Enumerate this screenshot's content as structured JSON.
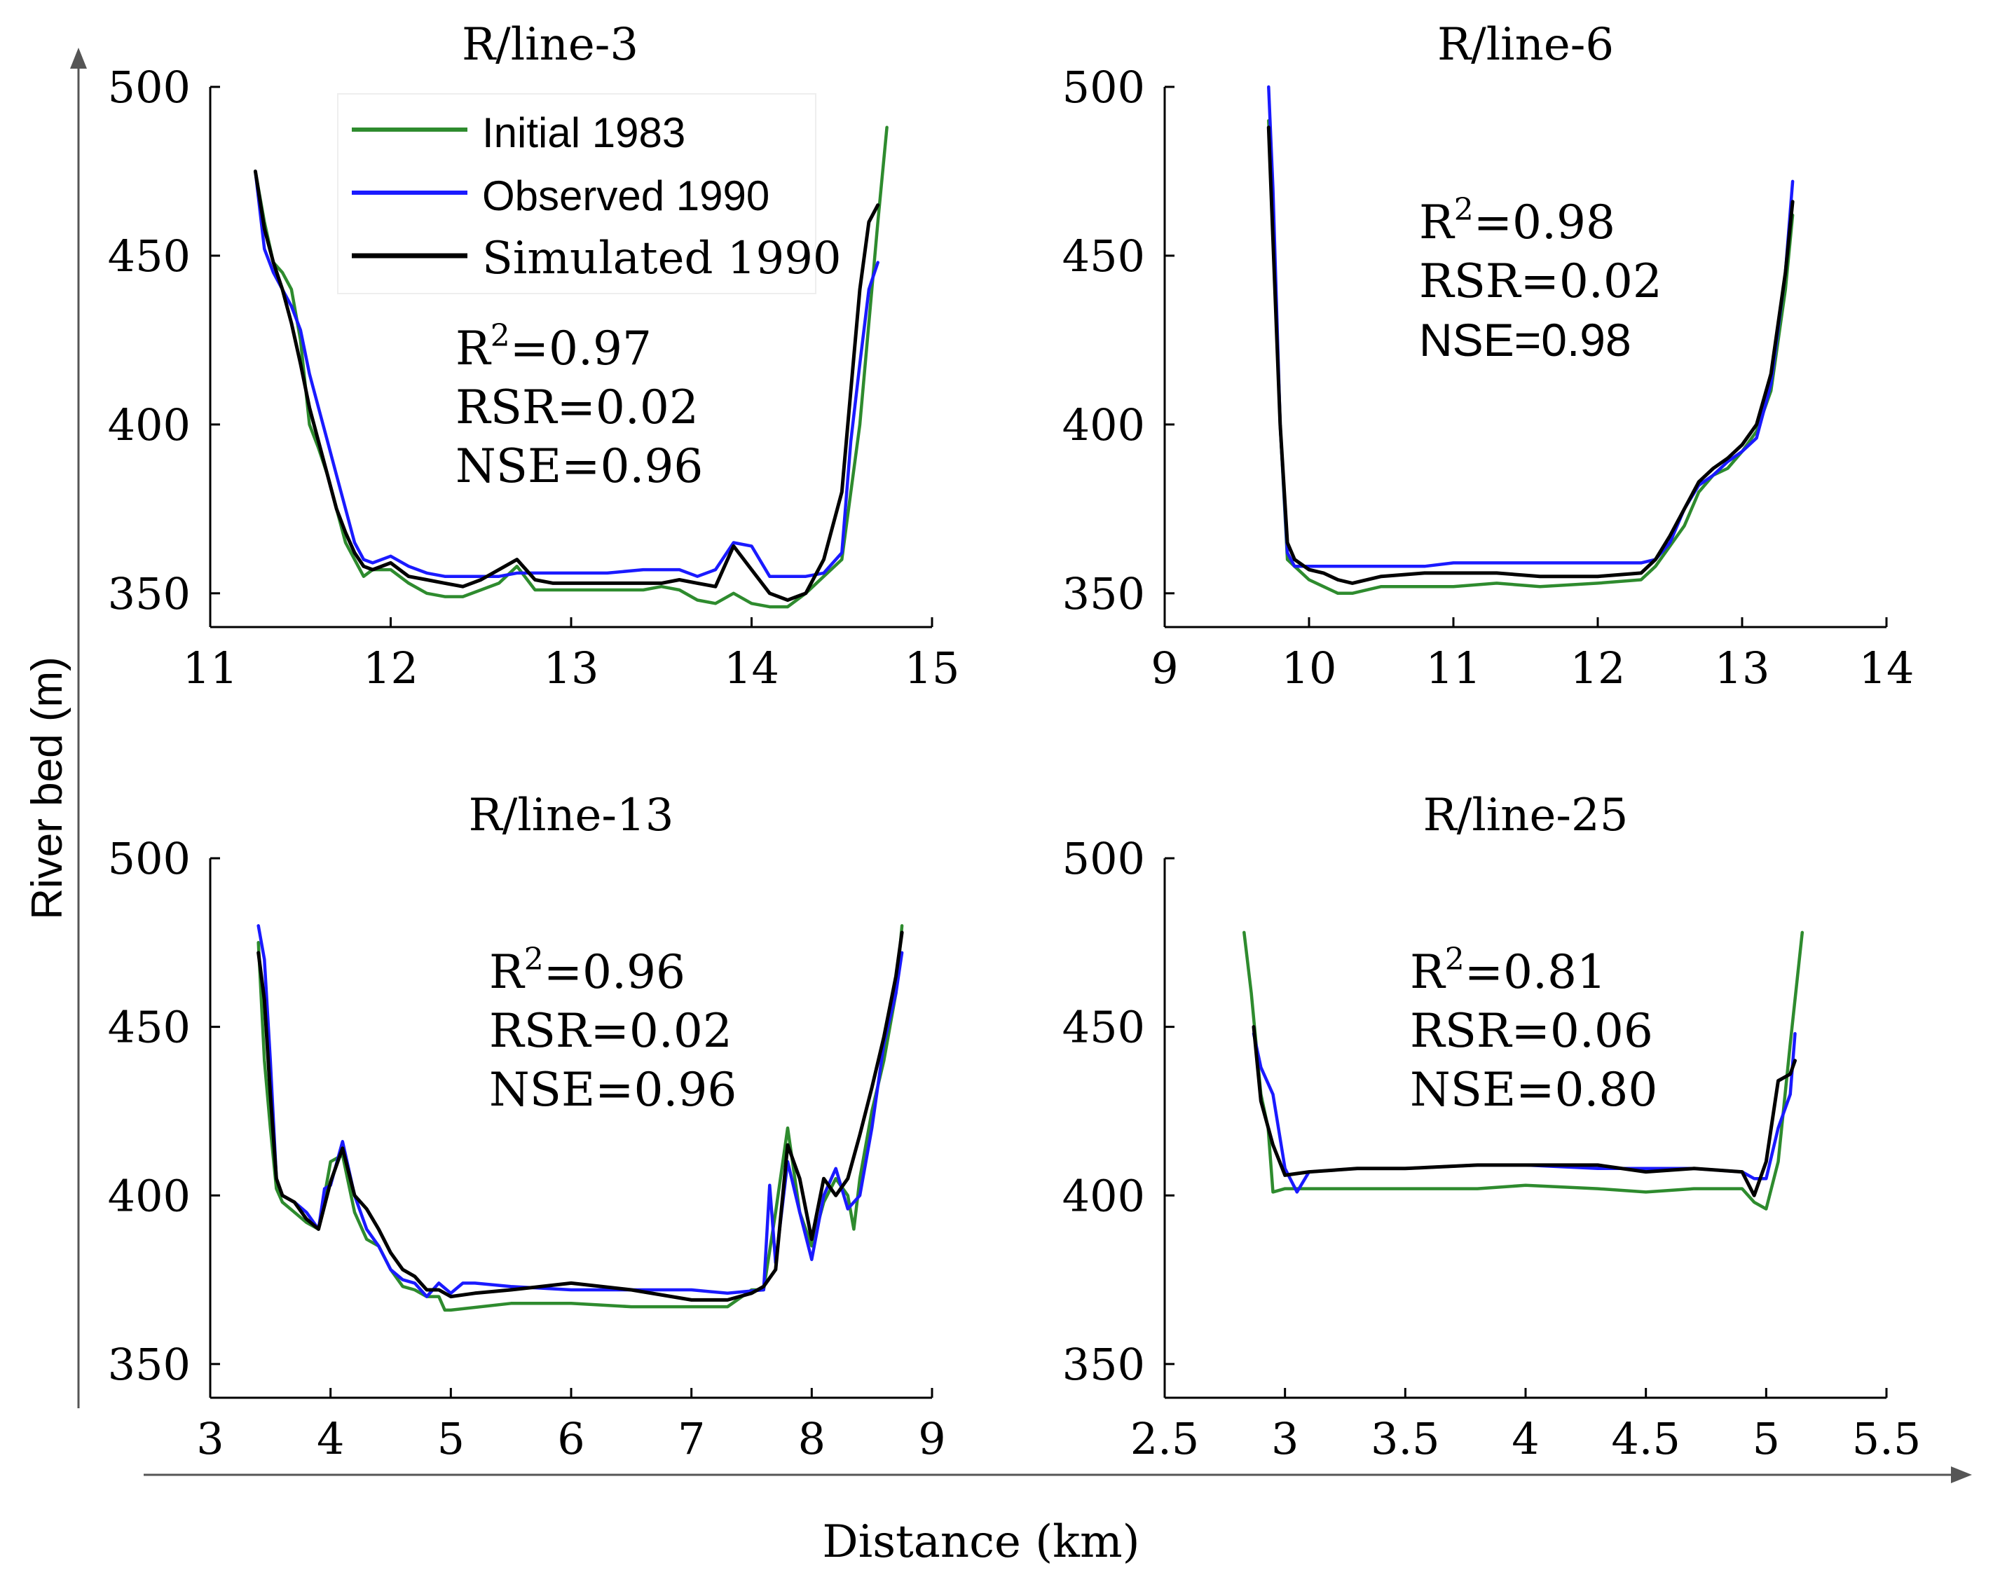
{
  "figure": {
    "ylabel": "River bed (m)",
    "xlabel": "Distance (km)"
  },
  "legend": {
    "placement": "top-left",
    "items": [
      {
        "label": "Initial 1983",
        "color": "#2e8b2e"
      },
      {
        "label": "Observed 1990",
        "color": "#1a1aff"
      },
      {
        "label": "Simulated 1990",
        "color": "#000000"
      }
    ]
  },
  "chart_data": [
    {
      "type": "line",
      "title": "R/line-3",
      "xlim": [
        11,
        15
      ],
      "ylim": [
        340,
        500
      ],
      "xticks": [
        "11",
        "12",
        "13",
        "14",
        "15"
      ],
      "yticks": [
        "350",
        "400",
        "450",
        "500"
      ],
      "xtick_values": [
        11,
        12,
        13,
        14,
        15
      ],
      "ytick_values": [
        350,
        400,
        450,
        500
      ],
      "stats": {
        "r2_prefix": "R",
        "r2_sup": "2",
        "r2_value": "=0.97",
        "rsr": "RSR=0.02",
        "nse": "NSE=0.96"
      },
      "series": [
        {
          "name": "Initial 1983",
          "color": "#2e8b2e",
          "x": [
            11.25,
            11.3,
            11.35,
            11.4,
            11.45,
            11.5,
            11.55,
            11.6,
            11.65,
            11.7,
            11.75,
            11.8,
            11.85,
            11.9,
            12.0,
            12.1,
            12.2,
            12.3,
            12.4,
            12.5,
            12.6,
            12.7,
            12.8,
            12.9,
            13.0,
            13.2,
            13.4,
            13.5,
            13.6,
            13.7,
            13.8,
            13.9,
            14.0,
            14.1,
            14.2,
            14.3,
            14.4,
            14.5,
            14.6,
            14.7,
            14.75
          ],
          "values": [
            475,
            460,
            448,
            445,
            440,
            425,
            400,
            393,
            385,
            375,
            365,
            360,
            355,
            357,
            357,
            353,
            350,
            349,
            349,
            351,
            353,
            358,
            351,
            351,
            351,
            351,
            351,
            352,
            351,
            348,
            347,
            350,
            347,
            346,
            346,
            350,
            355,
            360,
            400,
            460,
            488
          ]
        },
        {
          "name": "Observed 1990",
          "color": "#1a1aff",
          "x": [
            11.25,
            11.3,
            11.35,
            11.4,
            11.45,
            11.5,
            11.55,
            11.6,
            11.65,
            11.7,
            11.75,
            11.8,
            11.85,
            11.9,
            12.0,
            12.1,
            12.2,
            12.3,
            12.4,
            12.5,
            12.6,
            12.7,
            12.8,
            12.9,
            13.0,
            13.2,
            13.4,
            13.5,
            13.6,
            13.7,
            13.8,
            13.9,
            14.0,
            14.1,
            14.2,
            14.3,
            14.4,
            14.5,
            14.55,
            14.6,
            14.65,
            14.7
          ],
          "values": [
            475,
            452,
            445,
            440,
            435,
            428,
            415,
            405,
            395,
            385,
            375,
            365,
            360,
            359,
            361,
            358,
            356,
            355,
            355,
            355,
            355,
            356,
            356,
            356,
            356,
            356,
            357,
            357,
            357,
            355,
            357,
            365,
            364,
            355,
            355,
            355,
            356,
            362,
            395,
            418,
            440,
            448
          ]
        },
        {
          "name": "Simulated 1990",
          "color": "#000000",
          "x": [
            11.25,
            11.3,
            11.35,
            11.4,
            11.45,
            11.5,
            11.55,
            11.6,
            11.65,
            11.7,
            11.75,
            11.8,
            11.85,
            11.9,
            12.0,
            12.1,
            12.2,
            12.3,
            12.4,
            12.5,
            12.6,
            12.7,
            12.8,
            12.9,
            13.0,
            13.2,
            13.4,
            13.5,
            13.6,
            13.7,
            13.8,
            13.9,
            14.0,
            14.1,
            14.2,
            14.3,
            14.4,
            14.5,
            14.55,
            14.6,
            14.65,
            14.7
          ],
          "values": [
            475,
            458,
            448,
            440,
            430,
            418,
            405,
            395,
            385,
            375,
            368,
            362,
            358,
            357,
            359,
            355,
            354,
            353,
            352,
            354,
            357,
            360,
            354,
            353,
            353,
            353,
            353,
            353,
            354,
            353,
            352,
            364,
            357,
            350,
            348,
            350,
            360,
            380,
            410,
            440,
            460,
            465
          ]
        }
      ]
    },
    {
      "type": "line",
      "title": "R/line-6",
      "xlim": [
        9,
        14
      ],
      "ylim": [
        340,
        500
      ],
      "xticks": [
        "9",
        "10",
        "11",
        "12",
        "13",
        "14"
      ],
      "yticks": [
        "350",
        "400",
        "450",
        "500"
      ],
      "xtick_values": [
        9,
        10,
        11,
        12,
        13,
        14
      ],
      "ytick_values": [
        350,
        400,
        450,
        500
      ],
      "stats": {
        "r2_prefix": "R",
        "r2_sup": "2",
        "r2_value": "=0.98",
        "rsr": "RSR=0.02",
        "nse": "NSE=0.98"
      },
      "series": [
        {
          "name": "Initial 1983",
          "color": "#2e8b2e",
          "x": [
            9.72,
            9.75,
            9.8,
            9.85,
            9.9,
            10.0,
            10.1,
            10.2,
            10.3,
            10.5,
            10.8,
            11.0,
            11.3,
            11.6,
            12.0,
            12.3,
            12.4,
            12.5,
            12.6,
            12.7,
            12.8,
            12.9,
            13.0,
            13.1,
            13.2,
            13.3,
            13.35
          ],
          "values": [
            490,
            460,
            400,
            360,
            358,
            354,
            352,
            350,
            350,
            352,
            352,
            352,
            353,
            352,
            353,
            354,
            358,
            364,
            370,
            380,
            385,
            387,
            392,
            398,
            410,
            440,
            462
          ]
        },
        {
          "name": "Observed 1990",
          "color": "#1a1aff",
          "x": [
            9.72,
            9.75,
            9.8,
            9.85,
            9.9,
            10.0,
            10.2,
            10.5,
            10.8,
            11.0,
            11.3,
            11.6,
            12.0,
            12.3,
            12.4,
            12.5,
            12.6,
            12.7,
            12.8,
            12.9,
            13.0,
            13.1,
            13.2,
            13.3,
            13.35
          ],
          "values": [
            500,
            470,
            400,
            362,
            358,
            358,
            358,
            358,
            358,
            359,
            359,
            359,
            359,
            359,
            360,
            365,
            375,
            382,
            385,
            389,
            392,
            396,
            412,
            445,
            472
          ]
        },
        {
          "name": "Simulated 1990",
          "color": "#000000",
          "x": [
            9.72,
            9.75,
            9.8,
            9.85,
            9.9,
            10.0,
            10.1,
            10.2,
            10.3,
            10.5,
            10.8,
            11.0,
            11.3,
            11.6,
            11.9,
            12.0,
            12.3,
            12.4,
            12.5,
            12.6,
            12.7,
            12.8,
            12.9,
            13.0,
            13.1,
            13.2,
            13.3,
            13.35
          ],
          "values": [
            488,
            455,
            400,
            365,
            360,
            357,
            356,
            354,
            353,
            355,
            356,
            356,
            356,
            355,
            355,
            355,
            356,
            360,
            367,
            375,
            383,
            387,
            390,
            394,
            400,
            415,
            445,
            466
          ]
        }
      ]
    },
    {
      "type": "line",
      "title": "R/line-13",
      "xlim": [
        3,
        9
      ],
      "ylim": [
        340,
        500
      ],
      "xticks": [
        "3",
        "4",
        "5",
        "6",
        "7",
        "8",
        "9"
      ],
      "yticks": [
        "350",
        "400",
        "450",
        "500"
      ],
      "xtick_values": [
        3,
        4,
        5,
        6,
        7,
        8,
        9
      ],
      "ytick_values": [
        350,
        400,
        450,
        500
      ],
      "stats": {
        "r2_prefix": "R",
        "r2_sup": "2",
        "r2_value": "=0.96",
        "rsr": "RSR=0.02",
        "nse": "NSE=0.96"
      },
      "series": [
        {
          "name": "Initial 1983",
          "color": "#2e8b2e",
          "x": [
            3.4,
            3.45,
            3.5,
            3.55,
            3.6,
            3.7,
            3.8,
            3.9,
            4.0,
            4.1,
            4.2,
            4.3,
            4.4,
            4.5,
            4.6,
            4.7,
            4.8,
            4.9,
            4.95,
            5.0,
            5.5,
            6.0,
            6.5,
            7.0,
            7.3,
            7.5,
            7.6,
            7.7,
            7.8,
            7.9,
            8.0,
            8.1,
            8.2,
            8.3,
            8.35,
            8.4,
            8.5,
            8.6,
            8.7,
            8.75
          ],
          "values": [
            475,
            440,
            420,
            402,
            398,
            395,
            392,
            390,
            410,
            412,
            395,
            387,
            385,
            378,
            373,
            372,
            370,
            370,
            366,
            366,
            368,
            368,
            367,
            367,
            367,
            372,
            372,
            395,
            420,
            395,
            385,
            398,
            405,
            400,
            390,
            405,
            425,
            440,
            460,
            480
          ]
        },
        {
          "name": "Observed 1990",
          "color": "#1a1aff",
          "x": [
            3.4,
            3.45,
            3.5,
            3.55,
            3.6,
            3.7,
            3.8,
            3.9,
            3.95,
            4.0,
            4.1,
            4.2,
            4.3,
            4.4,
            4.5,
            4.6,
            4.7,
            4.8,
            4.9,
            5.0,
            5.1,
            5.2,
            5.5,
            6.0,
            6.5,
            7.0,
            7.3,
            7.6,
            7.65,
            7.7,
            7.8,
            7.9,
            8.0,
            8.1,
            8.2,
            8.3,
            8.4,
            8.5,
            8.6,
            8.7,
            8.75
          ],
          "values": [
            480,
            470,
            440,
            405,
            400,
            398,
            395,
            390,
            402,
            403,
            416,
            400,
            390,
            385,
            378,
            375,
            374,
            370,
            374,
            371,
            374,
            374,
            373,
            372,
            372,
            372,
            371,
            372,
            403,
            380,
            410,
            395,
            381,
            400,
            408,
            396,
            400,
            420,
            445,
            460,
            472
          ]
        },
        {
          "name": "Simulated 1990",
          "color": "#000000",
          "x": [
            3.4,
            3.45,
            3.5,
            3.55,
            3.6,
            3.7,
            3.8,
            3.9,
            4.0,
            4.1,
            4.2,
            4.3,
            4.4,
            4.5,
            4.6,
            4.7,
            4.8,
            4.9,
            5.0,
            5.2,
            5.5,
            6.0,
            6.5,
            7.0,
            7.3,
            7.5,
            7.6,
            7.7,
            7.8,
            7.9,
            8.0,
            8.1,
            8.2,
            8.3,
            8.4,
            8.5,
            8.6,
            8.7,
            8.75
          ],
          "values": [
            472,
            458,
            430,
            405,
            400,
            398,
            393,
            390,
            404,
            414,
            400,
            396,
            390,
            383,
            378,
            376,
            372,
            372,
            370,
            371,
            372,
            374,
            372,
            369,
            369,
            371,
            373,
            378,
            415,
            405,
            387,
            405,
            400,
            405,
            418,
            432,
            447,
            465,
            478
          ]
        }
      ]
    },
    {
      "type": "line",
      "title": "R/line-25",
      "xlim": [
        2.5,
        5.5
      ],
      "ylim": [
        340,
        500
      ],
      "xticks": [
        "2.5",
        "3",
        "3.5",
        "4",
        "4.5",
        "5",
        "5.5"
      ],
      "yticks": [
        "350",
        "400",
        "450",
        "500"
      ],
      "xtick_values": [
        2.5,
        3,
        3.5,
        4,
        4.5,
        5,
        5.5
      ],
      "ytick_values": [
        350,
        400,
        450,
        500
      ],
      "stats": {
        "r2_prefix": "R",
        "r2_sup": "2",
        "r2_value": "=0.81",
        "rsr": "RSR=0.06",
        "nse": "NSE=0.80"
      },
      "series": [
        {
          "name": "Initial 1983",
          "color": "#2e8b2e",
          "x": [
            2.83,
            2.86,
            2.9,
            2.93,
            2.95,
            3.0,
            3.2,
            3.5,
            3.8,
            4.0,
            4.3,
            4.5,
            4.7,
            4.9,
            4.95,
            5.0,
            5.05,
            5.1,
            5.15
          ],
          "values": [
            478,
            460,
            430,
            420,
            401,
            402,
            402,
            402,
            402,
            403,
            402,
            401,
            402,
            402,
            398,
            396,
            410,
            445,
            478
          ]
        },
        {
          "name": "Observed 1990",
          "color": "#1a1aff",
          "x": [
            2.87,
            2.9,
            2.95,
            3.0,
            3.05,
            3.1,
            3.3,
            3.5,
            3.8,
            4.0,
            4.3,
            4.5,
            4.7,
            4.9,
            4.95,
            5.0,
            5.05,
            5.1,
            5.12
          ],
          "values": [
            448,
            438,
            430,
            408,
            401,
            407,
            408,
            408,
            409,
            409,
            408,
            408,
            408,
            407,
            405,
            405,
            420,
            430,
            448
          ]
        },
        {
          "name": "Simulated 1990",
          "color": "#000000",
          "x": [
            2.87,
            2.9,
            2.95,
            3.0,
            3.1,
            3.3,
            3.5,
            3.8,
            4.0,
            4.3,
            4.5,
            4.7,
            4.9,
            4.95,
            5.0,
            5.05,
            5.1,
            5.12
          ],
          "values": [
            450,
            428,
            415,
            406,
            407,
            408,
            408,
            409,
            409,
            409,
            407,
            408,
            407,
            400,
            410,
            434,
            436,
            440
          ]
        }
      ]
    }
  ]
}
